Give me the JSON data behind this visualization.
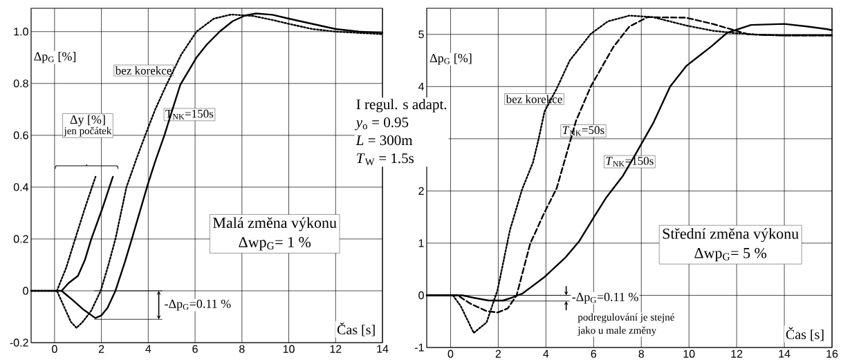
{
  "chart_data": [
    {
      "type": "line",
      "xlabel": "Čas [s]",
      "ylabel": "Δp$_{G}$ [%]",
      "xlim": [
        -1,
        14
      ],
      "ylim": [
        -0.2,
        1.09
      ],
      "xticks": [
        0,
        2,
        4,
        6,
        8,
        10,
        12,
        14
      ],
      "yticks": [
        -0.2,
        0,
        0.2,
        0.4,
        0.6,
        0.8,
        {
          "value": 1,
          "label": "1.0"
        }
      ],
      "grid": true,
      "series": [
        {
          "name": "bez korekce",
          "color": "#000000",
          "line_style": "dotted",
          "x": [
            -1,
            0,
            0.1,
            0.4,
            0.7,
            0.94,
            1.2,
            1.57,
            1.97,
            2.3,
            2.6,
            3.07,
            3.5,
            3.85,
            4.3,
            4.78,
            5.4,
            6.06,
            6.8,
            7.54,
            8.5,
            9.3,
            10,
            11,
            12,
            13,
            14
          ],
          "values": [
            0,
            0,
            0,
            -0.06,
            -0.12,
            -0.143,
            -0.12,
            -0.076,
            0,
            0.1,
            0.2,
            0.4,
            0.51,
            0.595,
            0.7,
            0.795,
            0.91,
            1.0,
            1.05,
            1.066,
            1.06,
            1.045,
            1.03,
            1.01,
            1.0,
            0.995,
            0.99
          ]
        },
        {
          "name": "T$_{NK}$=150s",
          "color": "#000000",
          "line_style": "solid",
          "x": [
            -1,
            0,
            0.3,
            0.7,
            1.2,
            1.74,
            2.0,
            2.26,
            2.6,
            3.0,
            3.3,
            3.98,
            4.3,
            4.69,
            5.0,
            5.37,
            6.06,
            6.5,
            7.05,
            7.6,
            8.13,
            8.6,
            9.3,
            10,
            11,
            12,
            13,
            14
          ],
          "values": [
            0,
            0,
            0,
            -0.03,
            -0.07,
            -0.105,
            -0.095,
            -0.066,
            0,
            0.11,
            0.2,
            0.41,
            0.5,
            0.6,
            0.69,
            0.795,
            0.9,
            0.95,
            1.0,
            1.04,
            1.062,
            1.07,
            1.065,
            1.05,
            1.03,
            1.01,
            1.0,
            0.995
          ]
        },
        {
          "color": "#000000",
          "line_style": "dotted",
          "x": [
            0.1,
            0.5,
            0.88,
            1.3,
            1.75
          ],
          "values": [
            0,
            0.09,
            0.2,
            0.32,
            0.44
          ]
        },
        {
          "color": "#000000",
          "line_style": "solid",
          "x": [
            0.3,
            0.6,
            1.0,
            1.3,
            1.57,
            2.03,
            2.49
          ],
          "values": [
            0,
            0.03,
            0.058,
            0.12,
            0.2,
            0.315,
            0.44
          ]
        }
      ],
      "annotations": [
        "Δy [%]",
        "jen počátek",
        {
          "text": "-Δp$_{G}$=0.11 %",
          "x": 1.7,
          "y": -0.11
        },
        "Malá změna výkonu",
        "Δwp$_{G}$= 1 %"
      ]
    },
    {
      "type": "line",
      "xlabel": "Čas [s]",
      "ylabel": "Δp$_{G}$ [%]",
      "xlim": [
        -1,
        16
      ],
      "ylim": [
        -1,
        5.5
      ],
      "xticks": [
        0,
        2,
        4,
        6,
        8,
        10,
        12,
        14,
        16
      ],
      "yticks": [
        -1,
        0,
        1,
        2,
        {
          "value": 3,
          "label": null
        },
        4,
        5
      ],
      "grid": true,
      "series": [
        {
          "name": "bez korekce",
          "color": "#000000",
          "line_style": "dotted",
          "x": [
            -1,
            0,
            0.1,
            0.43,
            0.97,
            1.51,
            1.97,
            2.49,
            3.0,
            3.46,
            3.69,
            3.94,
            4.45,
            5.0,
            5.88,
            6.6,
            7.5,
            8.5,
            9.88,
            11,
            11.8,
            13,
            14,
            16
          ],
          "values": [
            0,
            0,
            0,
            -0.21,
            -0.72,
            -0.52,
            0.1,
            1.25,
            2.03,
            2.55,
            2.99,
            3.52,
            3.96,
            4.5,
            5.01,
            5.25,
            5.36,
            5.33,
            5.17,
            5.07,
            5.03,
            4.99,
            4.98,
            4.98
          ]
        },
        {
          "name": "*T*$_{NK}$=50s",
          "color": "#000000",
          "line_style": "dashed",
          "x": [
            -1,
            0,
            0.3,
            0.83,
            1.5,
            1.97,
            2.4,
            2.77,
            3.34,
            3.91,
            4.45,
            5.26,
            5.88,
            6.83,
            7.5,
            8.26,
            9.88,
            11,
            11.6,
            12.5,
            14,
            16
          ],
          "values": [
            0,
            0,
            0,
            -0.16,
            -0.3,
            -0.33,
            -0.25,
            0,
            0.99,
            1.56,
            2.05,
            3.34,
            4.0,
            4.76,
            5.15,
            5.33,
            5.32,
            5.2,
            5.12,
            5.0,
            4.98,
            4.98
          ]
        },
        {
          "name": "*T*$_{NK}$=150s",
          "color": "#000000",
          "line_style": "solid",
          "x": [
            -1,
            0,
            0.5,
            1.0,
            1.6,
            2.2,
            2.54,
            3.0,
            3.91,
            4.83,
            5.4,
            6.03,
            6.54,
            7.23,
            7.69,
            8.5,
            9.21,
            9.9,
            10.94,
            11.6,
            12.6,
            14.0,
            15,
            15.8,
            16
          ],
          "values": [
            0,
            0,
            0,
            -0.05,
            -0.1,
            -0.1,
            -0.05,
            0.03,
            0.34,
            0.73,
            1.04,
            1.51,
            1.88,
            2.29,
            2.65,
            3.3,
            4.0,
            4.4,
            4.77,
            5.03,
            5.18,
            5.2,
            5.15,
            5.1,
            5.08
          ]
        }
      ],
      "annotations": [
        {
          "text": "-Δp$_{G}$=0.11 %",
          "x": 1.8,
          "y": -0.11
        },
        "podregulování je stejné",
        "jako u male změny",
        "Střední změna výkonu",
        "Δwp$_{G}$= 5 %",
        "I regul. s adapt.",
        "*y*$_{o}$ = 0.95",
        "*L* = 300m",
        "*T*$_{W}$ = 1.5s"
      ]
    }
  ]
}
